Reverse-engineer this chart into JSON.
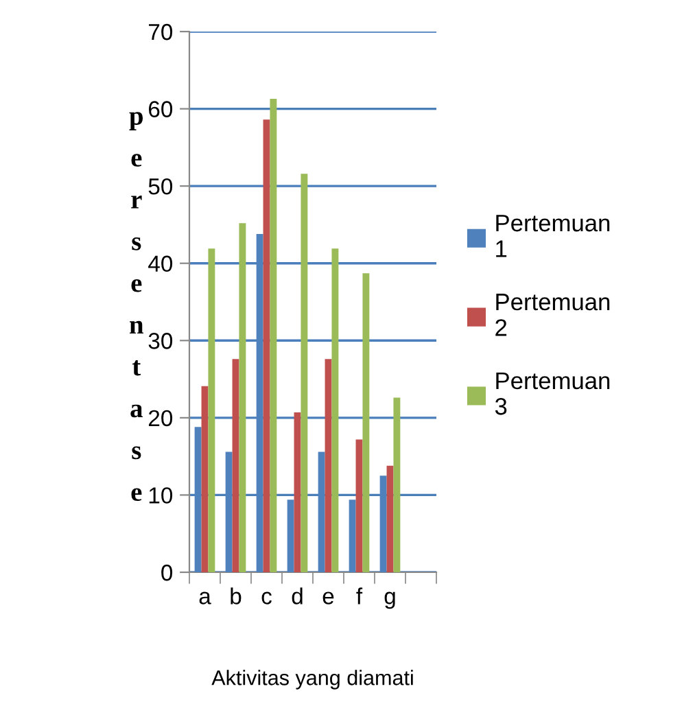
{
  "chart_data": {
    "type": "bar",
    "xlabel": "Aktivitas yang diamati",
    "ylabel": "persentase",
    "categories": [
      "a",
      "b",
      "c",
      "d",
      "e",
      "f",
      "g",
      null
    ],
    "series": [
      {
        "name": "Pertemuan 1",
        "color": "#4f81bd",
        "values": [
          18.8,
          15.6,
          43.8,
          9.4,
          15.6,
          9.4,
          12.5,
          null
        ]
      },
      {
        "name": "Pertemuan 2",
        "color": "#c0504d",
        "values": [
          24.1,
          27.6,
          58.6,
          20.7,
          27.6,
          17.2,
          13.8,
          null
        ]
      },
      {
        "name": "Pertemuan 3",
        "color": "#9bbb59",
        "values": [
          41.9,
          45.2,
          61.3,
          51.6,
          41.9,
          38.7,
          22.6,
          null
        ]
      }
    ],
    "ylim": [
      0,
      70
    ],
    "yticks": [
      0,
      10,
      20,
      30,
      40,
      50,
      60,
      70
    ],
    "grid": "y",
    "legend": "right"
  }
}
